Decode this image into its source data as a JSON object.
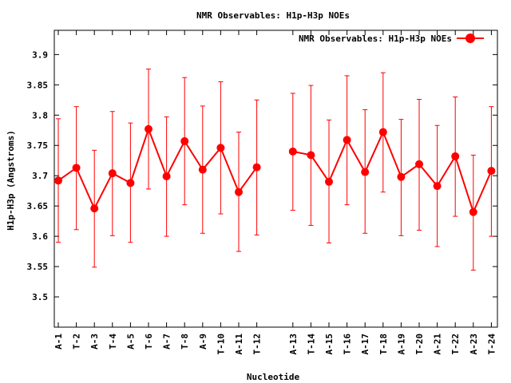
{
  "chart_data": {
    "type": "line",
    "title": "NMR Observables: H1p-H3p NOEs",
    "xlabel": "Nucleotide",
    "ylabel": "H1p-H3p (Angstroms)",
    "ylim": [
      3.45,
      3.94
    ],
    "yticks": [
      "3.5",
      "3.55",
      "3.6",
      "3.65",
      "3.7",
      "3.75",
      "3.8",
      "3.85",
      "3.9"
    ],
    "grid": false,
    "legend_position": "top-right",
    "series": [
      {
        "name": "NMR Observables: H1p-H3p NOEs",
        "color": "#ff0000",
        "groups": [
          {
            "categories": [
              "A-1",
              "T-2",
              "A-3",
              "T-4",
              "A-5",
              "T-6",
              "A-7",
              "T-8",
              "A-9",
              "T-10",
              "A-11",
              "T-12"
            ],
            "values": [
              3.692,
              3.713,
              3.646,
              3.704,
              3.688,
              3.777,
              3.699,
              3.757,
              3.71,
              3.746,
              3.673,
              3.714
            ],
            "err_low": [
              3.59,
              3.611,
              3.549,
              3.601,
              3.59,
              3.678,
              3.6,
              3.652,
              3.605,
              3.637,
              3.575,
              3.602
            ],
            "err_high": [
              3.794,
              3.814,
              3.742,
              3.806,
              3.787,
              3.876,
              3.797,
              3.862,
              3.815,
              3.855,
              3.772,
              3.825
            ]
          },
          {
            "categories": [
              "A-13",
              "T-14",
              "A-15",
              "T-16",
              "A-17",
              "T-18",
              "A-19",
              "T-20",
              "A-21",
              "T-22",
              "A-23",
              "T-24"
            ],
            "values": [
              3.74,
              3.734,
              3.69,
              3.759,
              3.706,
              3.772,
              3.698,
              3.719,
              3.683,
              3.732,
              3.64,
              3.708
            ],
            "err_low": [
              3.643,
              3.618,
              3.589,
              3.652,
              3.605,
              3.673,
              3.601,
              3.61,
              3.583,
              3.633,
              3.544,
              3.6
            ],
            "err_high": [
              3.836,
              3.849,
              3.792,
              3.865,
              3.809,
              3.87,
              3.793,
              3.826,
              3.783,
              3.83,
              3.734,
              3.814
            ]
          }
        ]
      }
    ],
    "legend": {
      "label": "NMR Observables: H1p-H3p NOEs"
    }
  }
}
